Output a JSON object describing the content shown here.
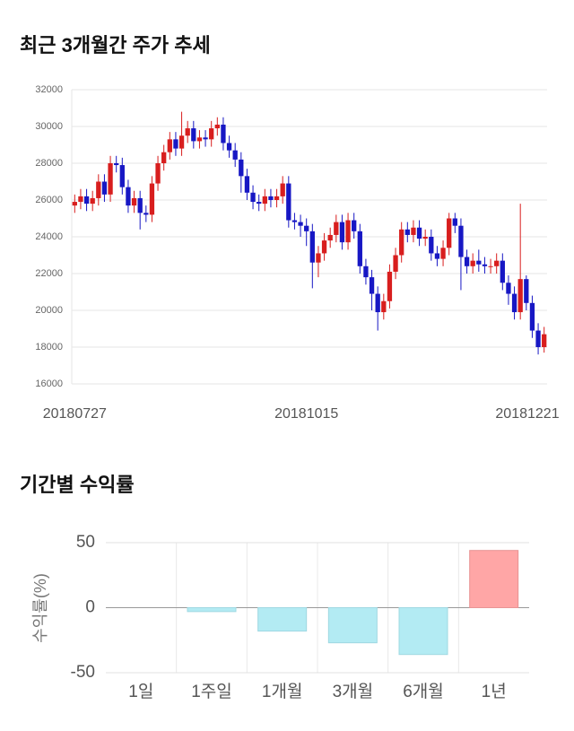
{
  "chart_data": [
    {
      "type": "candlestick",
      "title": "최근 3개월간 주가 추세",
      "categories": [
        "20180727",
        null,
        null,
        null,
        null,
        null,
        null,
        null,
        null,
        null,
        null,
        null,
        null,
        null,
        null,
        null,
        null,
        null,
        null,
        null,
        null,
        null,
        null,
        null,
        null,
        null,
        null,
        null,
        null,
        null,
        null,
        null,
        null,
        null,
        null,
        null,
        null,
        null,
        null,
        "20181015",
        null,
        null,
        null,
        null,
        null,
        null,
        null,
        null,
        null,
        null,
        null,
        null,
        null,
        null,
        null,
        null,
        null,
        null,
        null,
        null,
        null,
        null,
        null,
        null,
        null,
        null,
        null,
        null,
        null,
        null,
        null,
        null,
        null,
        null,
        null,
        null,
        null,
        null,
        null,
        "20181221"
      ],
      "open": [
        25700,
        25900,
        26200,
        25800,
        26100,
        27000,
        26300,
        28000,
        27900,
        26700,
        25700,
        26100,
        25300,
        25200,
        26900,
        28000,
        28600,
        29300,
        28800,
        29500,
        29900,
        29200,
        29400,
        29300,
        29900,
        30100,
        29100,
        28700,
        28200,
        27300,
        26400,
        25900,
        25800,
        26200,
        26000,
        26200,
        26900,
        24900,
        24800,
        24600,
        24300,
        22600,
        23100,
        23800,
        24100,
        24800,
        23700,
        24900,
        24300,
        22400,
        21800,
        20900,
        19900,
        20500,
        22100,
        23000,
        24400,
        24100,
        24500,
        23900,
        24000,
        23100,
        22800,
        23400,
        25000,
        24600,
        22900,
        22400,
        22700,
        22500,
        22400,
        22400,
        22700,
        21500,
        20900,
        19900,
        21700,
        20400,
        18900,
        18000
      ],
      "high": [
        26300,
        26600,
        26600,
        26500,
        27400,
        27400,
        28400,
        28400,
        28300,
        27100,
        26500,
        26500,
        25700,
        27300,
        28400,
        29000,
        29700,
        29700,
        30800,
        30300,
        30300,
        29800,
        29800,
        30300,
        30500,
        30500,
        29500,
        29100,
        28600,
        27700,
        26800,
        26300,
        26600,
        26600,
        26600,
        27300,
        27300,
        25300,
        25200,
        25000,
        24700,
        23500,
        24200,
        24500,
        25200,
        25200,
        25300,
        25300,
        24700,
        22800,
        22200,
        21300,
        20900,
        22500,
        23400,
        24800,
        24800,
        24900,
        24900,
        24400,
        24400,
        23500,
        23800,
        25300,
        25300,
        25000,
        23300,
        23100,
        23300,
        22900,
        22800,
        23100,
        23100,
        21900,
        21300,
        25800,
        21900,
        20800,
        19300,
        19100
      ],
      "low": [
        25300,
        25500,
        25400,
        25400,
        25700,
        25900,
        25900,
        27500,
        26300,
        25300,
        25300,
        24400,
        24800,
        24800,
        26500,
        27600,
        28200,
        28400,
        28400,
        29100,
        28800,
        28800,
        28900,
        28900,
        29500,
        28700,
        28300,
        27800,
        26400,
        26000,
        25500,
        25400,
        25400,
        25600,
        25600,
        25800,
        24500,
        24400,
        24000,
        23500,
        21200,
        21800,
        22700,
        23400,
        23700,
        23300,
        23300,
        23900,
        22000,
        21400,
        20000,
        18900,
        19500,
        20100,
        21700,
        22600,
        23700,
        23700,
        23500,
        23500,
        22700,
        22400,
        22400,
        23000,
        24200,
        21100,
        22000,
        22000,
        22100,
        22000,
        22000,
        22000,
        21100,
        20300,
        19500,
        19500,
        20000,
        18500,
        17600,
        17700
      ],
      "close": [
        25900,
        26200,
        25800,
        26100,
        27000,
        26300,
        28000,
        27900,
        26700,
        25700,
        26100,
        25300,
        25200,
        26900,
        28000,
        28600,
        29300,
        28800,
        29500,
        29900,
        29200,
        29400,
        29300,
        29900,
        30100,
        29100,
        28700,
        28200,
        27300,
        26400,
        25900,
        25800,
        26200,
        26000,
        26200,
        26900,
        24900,
        24800,
        24600,
        24300,
        22600,
        23100,
        23800,
        24100,
        24800,
        23700,
        24900,
        24300,
        22400,
        21800,
        20900,
        19900,
        20500,
        22100,
        23000,
        24400,
        24100,
        24500,
        23900,
        24000,
        23100,
        22800,
        23400,
        25000,
        24600,
        22900,
        22400,
        22700,
        22500,
        22400,
        22400,
        22700,
        21500,
        20900,
        19900,
        21700,
        20400,
        18900,
        18000,
        18700
      ],
      "up_color": "#d81e1e",
      "down_color": "#1717c4",
      "ylim": [
        16000,
        32000
      ],
      "yticks": [
        16000,
        18000,
        20000,
        22000,
        24000,
        26000,
        28000,
        30000,
        32000
      ],
      "grid": true
    },
    {
      "type": "bar",
      "title": "기간별 수익률",
      "ylabel": "수익률(%)",
      "categories": [
        "1일",
        "1주일",
        "1개월",
        "3개월",
        "6개월",
        "1년"
      ],
      "values": [
        0,
        -3,
        -18,
        -27,
        -36,
        44
      ],
      "colors": [
        "#b3ebf3",
        "#b3ebf3",
        "#b3ebf3",
        "#b3ebf3",
        "#b3ebf3",
        "#ffa6a6"
      ],
      "ylim": [
        -50,
        50
      ],
      "yticks": [
        -50,
        0,
        50
      ],
      "grid": true
    }
  ]
}
